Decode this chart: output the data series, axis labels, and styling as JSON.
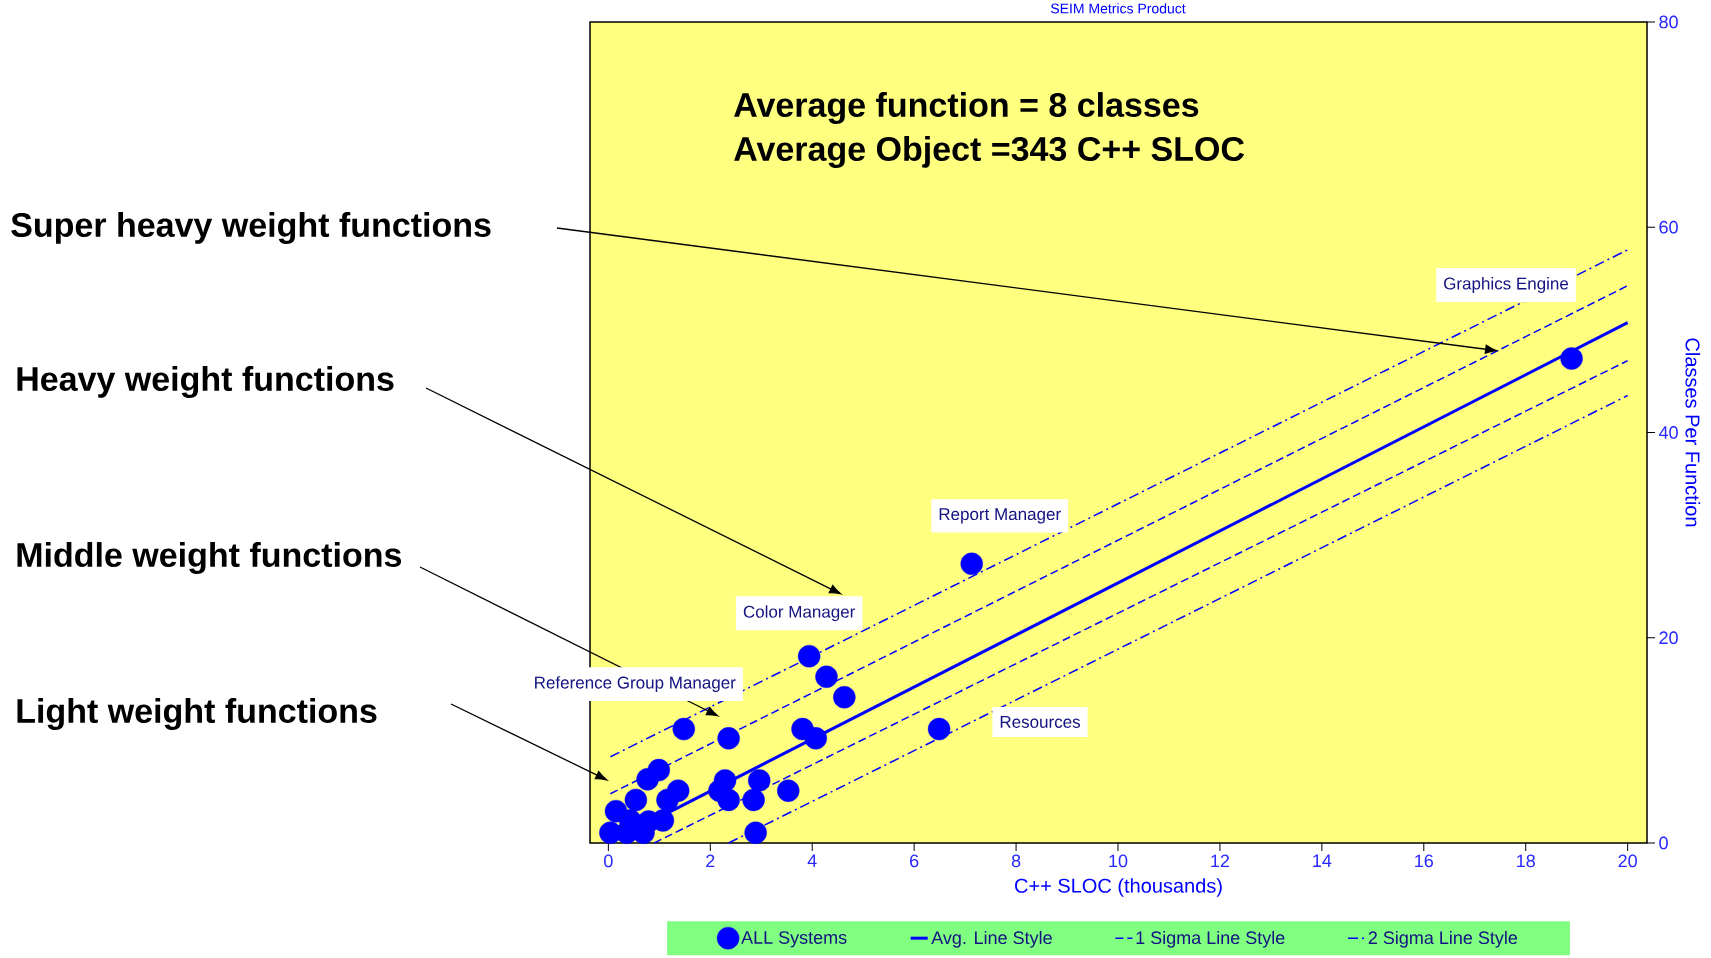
{
  "chart_data": {
    "type": "scatter",
    "title": "SEIM Metrics Product",
    "xlabel": "C++ SLOC (thousands)",
    "ylabel": "Classes Per Function",
    "xlim": [
      -0.36,
      20.38
    ],
    "ylim": [
      0,
      80
    ],
    "xticks": [
      0,
      2,
      4,
      6,
      8,
      10,
      12,
      14,
      16,
      18,
      20
    ],
    "yticks": [
      0,
      20,
      40,
      60,
      80
    ],
    "grid": false,
    "legend": "bottom",
    "series": [
      {
        "name": "ALL Systems",
        "color": "#0000ff",
        "x": [
          18.9,
          7.13,
          6.49,
          3.94,
          4.28,
          4.63,
          1.48,
          2.36,
          3.81,
          4.07,
          0.99,
          0.77,
          1.37,
          1.16,
          0.54,
          0.15,
          1.07,
          2.18,
          2.29,
          2.36,
          2.85,
          2.96,
          3.53,
          2.89,
          0.04,
          0.36,
          0.69,
          0.79,
          0.43
        ],
        "values": [
          47.2,
          27.2,
          11.1,
          18.2,
          16.2,
          14.2,
          11.1,
          10.2,
          11.1,
          10.2,
          7.1,
          6.2,
          5.1,
          4.2,
          4.2,
          3.1,
          2.2,
          5.1,
          6.1,
          4.2,
          4.2,
          6.1,
          5.1,
          1.0,
          1.0,
          1.0,
          1.0,
          2.1,
          2.2
        ]
      },
      {
        "name": "Avg. Line Style",
        "type": "line",
        "color": "#0000ff",
        "line_style": "solid",
        "marker": "none",
        "x": [
          0.6,
          20
        ],
        "values": [
          1.5,
          50.7
        ]
      },
      {
        "name": "1 Sigma Line Style",
        "type": "line",
        "color": "#0000ff",
        "line_style": "dashed",
        "marker": "none",
        "x": [
          0.04,
          20
        ],
        "values": [
          4.8,
          54.3
        ]
      },
      {
        "type": "line",
        "color": "#0000ff",
        "line_style": "dashed",
        "marker": "none",
        "x": [
          0.9,
          20
        ],
        "values": [
          0,
          47.0
        ]
      },
      {
        "name": "2 Sigma Line Style",
        "type": "line",
        "color": "#0000ff",
        "line_style": "dashdot",
        "marker": "none",
        "x": [
          0.04,
          20
        ],
        "values": [
          8.4,
          57.8
        ]
      },
      {
        "type": "line",
        "color": "#0000ff",
        "line_style": "dashdot",
        "marker": "none",
        "x": [
          2.36,
          20
        ],
        "values": [
          0,
          43.6
        ]
      }
    ],
    "annotations": [
      "Average function = 8 classes",
      "Average Object =343 C++ SLOC",
      "Super heavy weight functions",
      "Heavy weight functions",
      "Middle weight functions",
      "Light weight functions",
      "Graphics Engine",
      {
        "text": "Report Manager",
        "x": 7.13,
        "y": 27.2
      },
      {
        "text": "Color Manager",
        "x": 3.94,
        "y": 18.2
      },
      {
        "text": "Reference Group Manager",
        "x": 1.48,
        "y": 11.1
      },
      "Resources"
    ]
  }
}
